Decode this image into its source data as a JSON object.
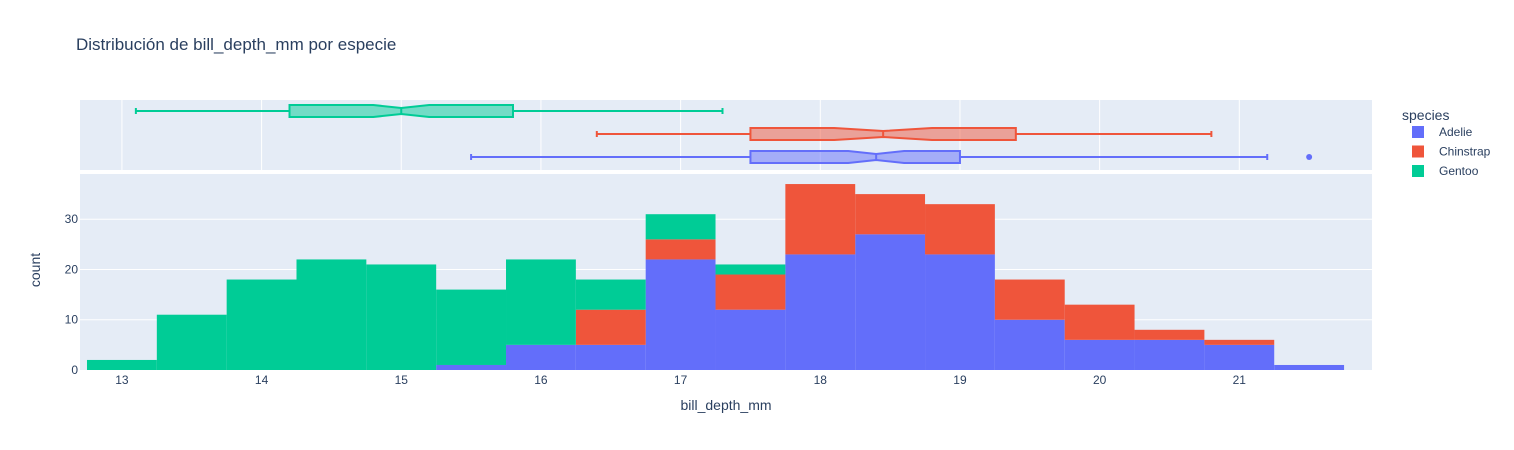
{
  "chart_data": {
    "type": "bar",
    "title": "Distribución de bill_depth_mm por especie",
    "xlabel": "bill_depth_mm",
    "ylabel": "count",
    "legend_title": "species",
    "legend_position": "right",
    "barmode": "stack",
    "bins": {
      "start": 12.75,
      "size": 0.5,
      "count": 18
    },
    "xlim": [
      12.7,
      21.95
    ],
    "ylim": [
      0,
      39
    ],
    "x_ticks": [
      13,
      14,
      15,
      16,
      17,
      18,
      19,
      20,
      21
    ],
    "y_ticks": [
      0,
      10,
      20,
      30
    ],
    "grid": true,
    "series": [
      {
        "name": "Adelie",
        "color": "#636efa",
        "counts": [
          0,
          0,
          0,
          0,
          0,
          1,
          5,
          5,
          22,
          12,
          23,
          27,
          23,
          10,
          6,
          6,
          5,
          1
        ],
        "box": {
          "min": 15.5,
          "q1": 17.5,
          "median": 18.4,
          "q3": 19.0,
          "max": 21.2,
          "notch_low": 18.2,
          "notch_high": 18.6,
          "outliers": [
            21.5
          ]
        }
      },
      {
        "name": "Chinstrap",
        "color": "#ef553b",
        "counts": [
          0,
          0,
          0,
          0,
          0,
          0,
          0,
          7,
          4,
          7,
          14,
          8,
          10,
          8,
          7,
          2,
          1,
          0
        ],
        "box": {
          "min": 16.4,
          "q1": 17.5,
          "median": 18.45,
          "q3": 19.4,
          "max": 20.8,
          "notch_low": 18.1,
          "notch_high": 18.8,
          "outliers": []
        }
      },
      {
        "name": "Gentoo",
        "color": "#00cc96",
        "counts": [
          2,
          11,
          18,
          22,
          21,
          15,
          17,
          6,
          5,
          2,
          0,
          0,
          0,
          0,
          0,
          0,
          0,
          0
        ],
        "box": {
          "min": 13.1,
          "q1": 14.2,
          "median": 15.0,
          "q3": 15.8,
          "max": 17.3,
          "notch_low": 14.8,
          "notch_high": 15.2,
          "outliers": []
        }
      }
    ]
  }
}
